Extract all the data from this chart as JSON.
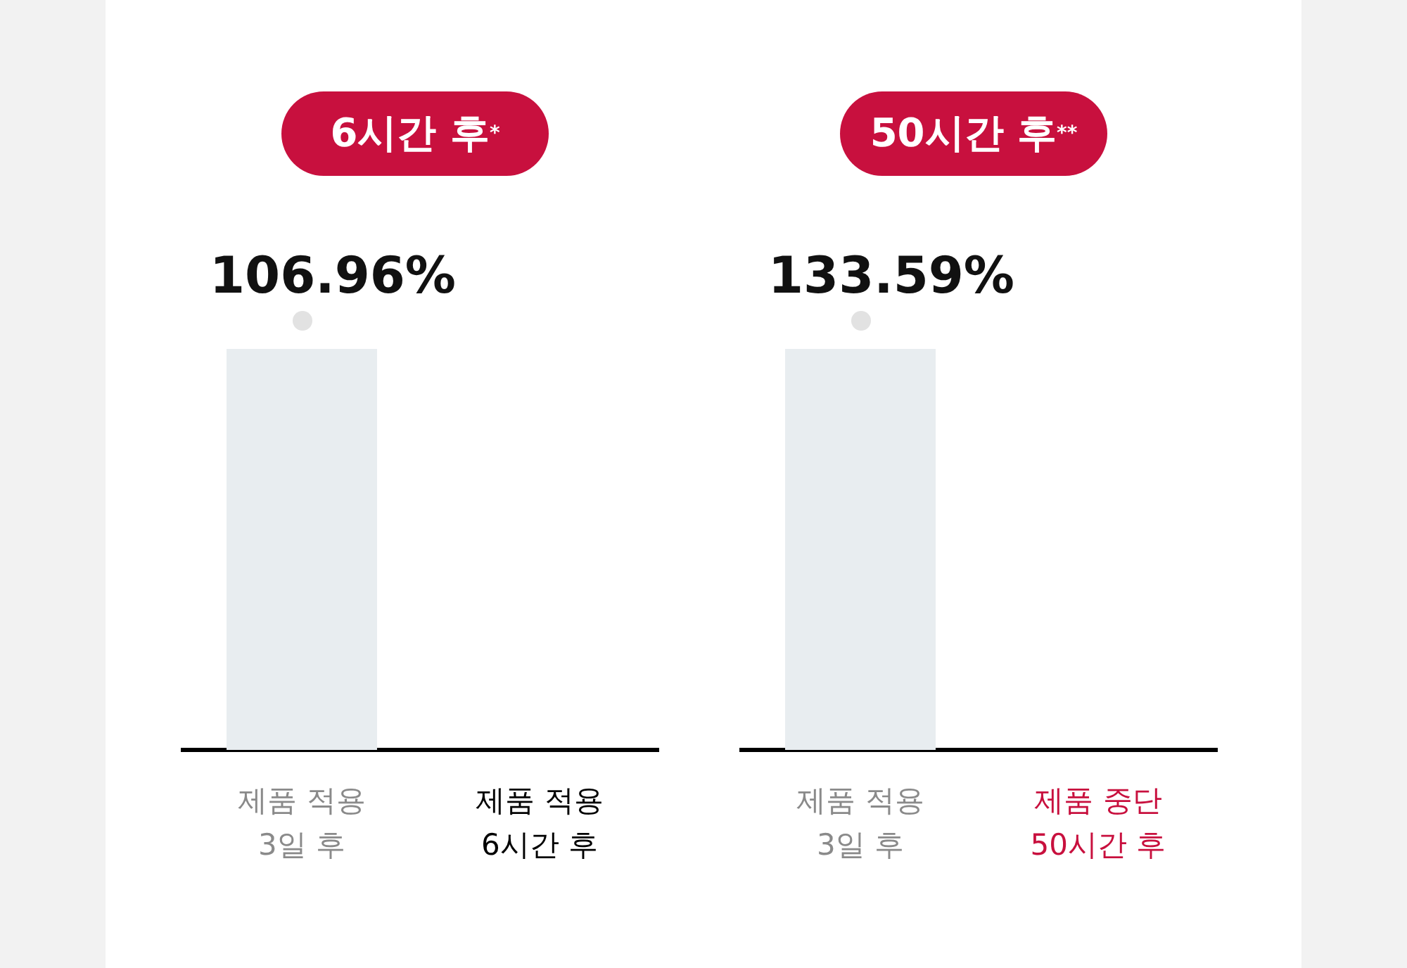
{
  "chart_data": [
    {
      "type": "bar",
      "title": "6시간 후$^{*}$",
      "categories": [
        "제품 적용\n3일 후",
        "제품 적용\n6시간 후"
      ],
      "values": [
        106.96,
        null
      ],
      "value_labels": [
        "106.96%",
        null
      ],
      "ylim": [
        0,
        106.96
      ],
      "color": "#e8edf0",
      "grid": false,
      "legend": false
    },
    {
      "type": "bar",
      "title": "50시간 후$^{**}$",
      "categories": [
        "제품 적용\n3일 후",
        "제품 중단\n50시간 후"
      ],
      "values": [
        133.59,
        null
      ],
      "value_labels": [
        "133.59%",
        null
      ],
      "ylim": [
        0,
        133.59
      ],
      "color": "#e8edf0",
      "grid": false,
      "legend": false
    }
  ]
}
